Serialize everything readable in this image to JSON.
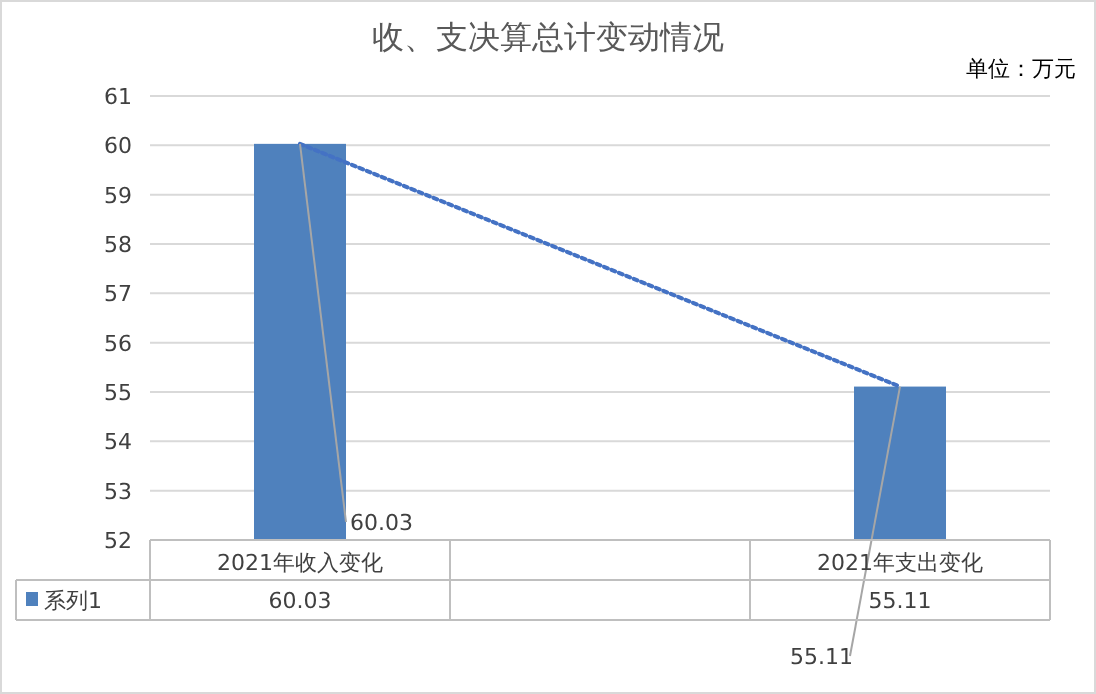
{
  "chart_data": {
    "type": "bar",
    "title": "收、支决算总计变动情况",
    "annotations": [
      "单位：万元"
    ],
    "categories": [
      "2021年收入变化",
      null,
      "2021年支出变化"
    ],
    "series": [
      {
        "name": "系列1",
        "color": "#4f81bd",
        "values": [
          60.03,
          null,
          55.11
        ],
        "value_labels": [
          "60.03",
          null,
          "55.11"
        ]
      },
      {
        "type": "line",
        "color": "#4472c4",
        "line_style": "dotted",
        "values": [
          60.03,
          null,
          55.11
        ],
        "value_labels": [
          "60.03",
          null,
          "55.11"
        ]
      }
    ],
    "ylim": [
      52,
      61
    ],
    "yticks": [
      52,
      53,
      54,
      55,
      56,
      57,
      58,
      59,
      60,
      61
    ],
    "grid": "y"
  }
}
